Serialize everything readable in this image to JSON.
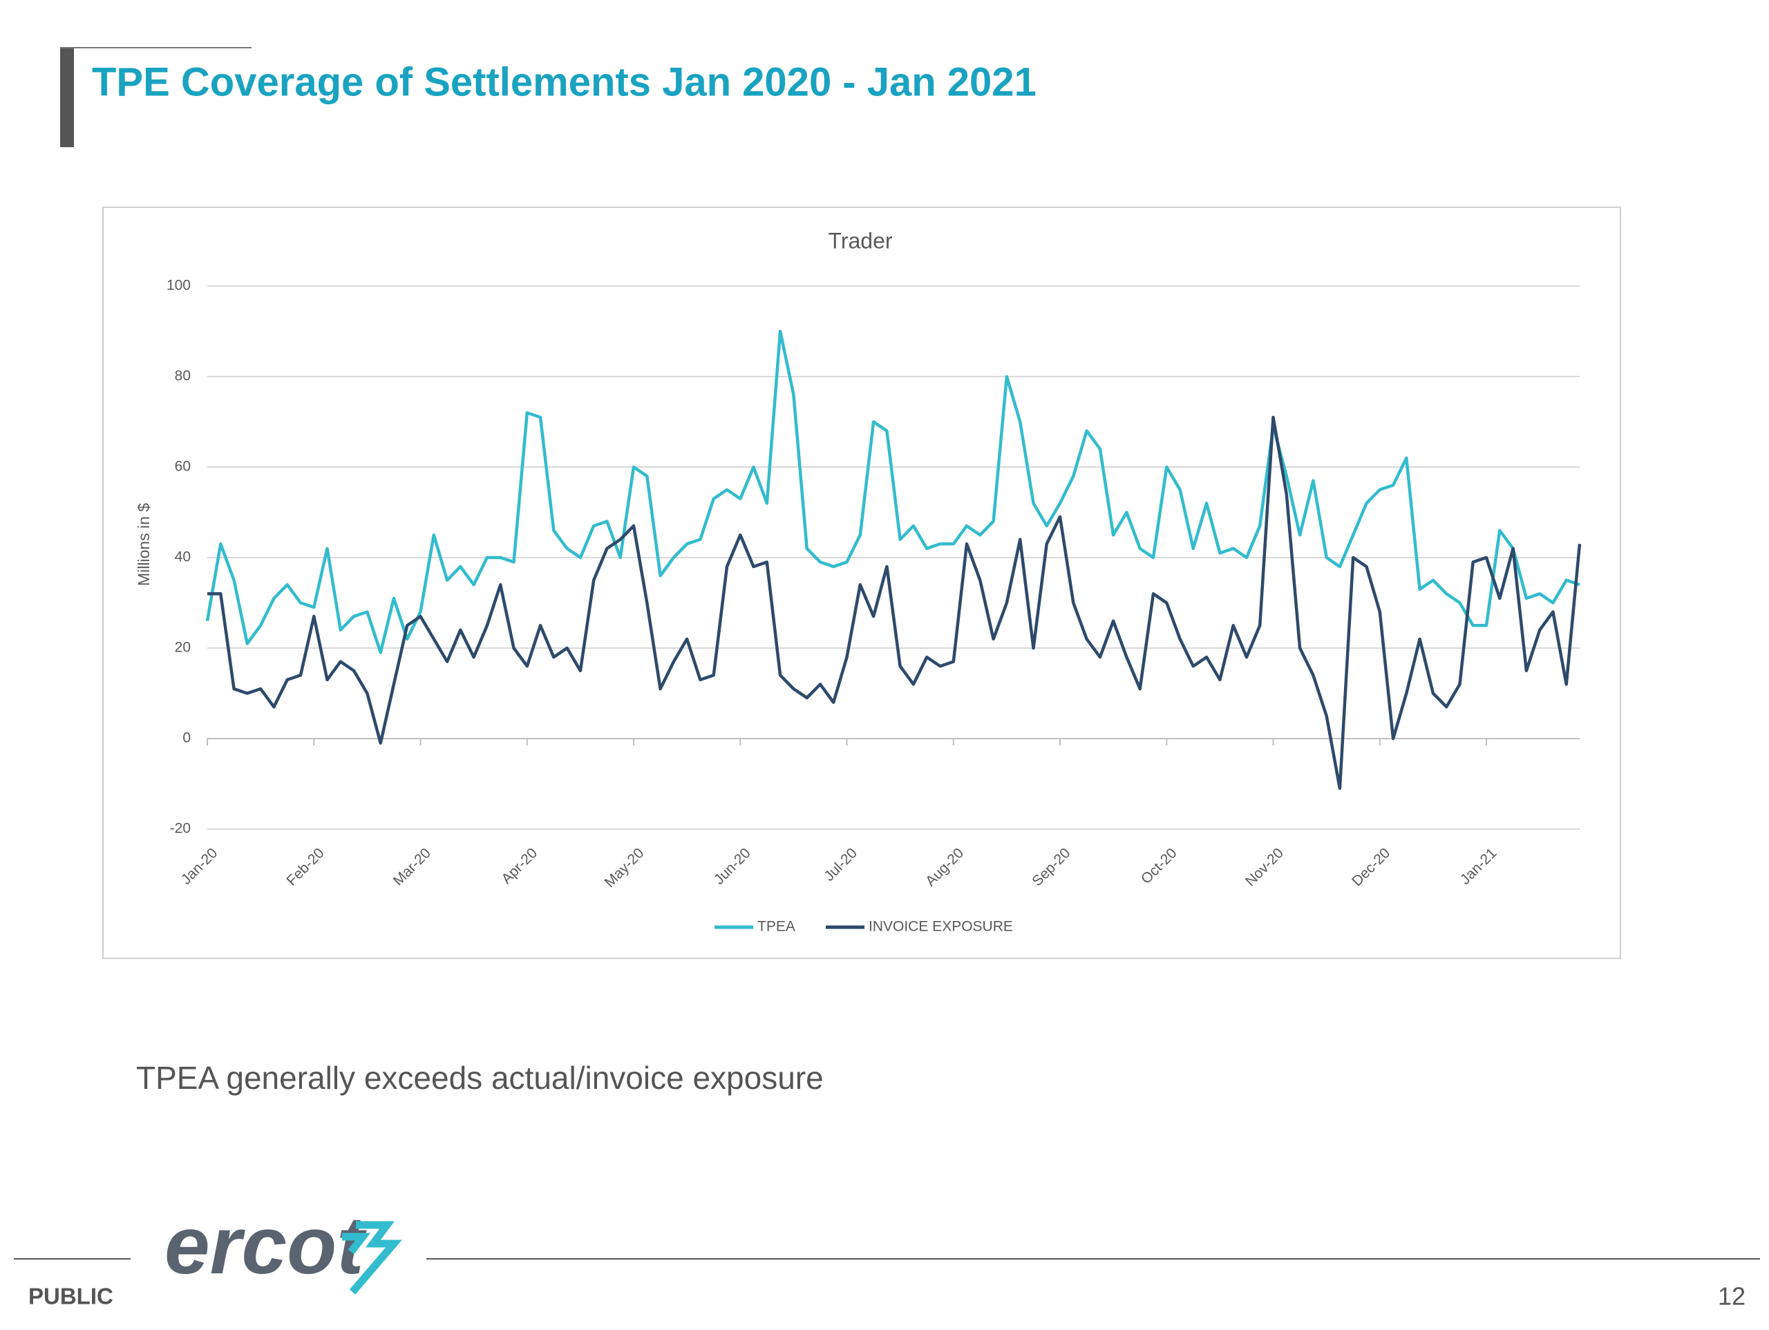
{
  "title": "TPE Coverage of Settlements Jan 2020 - Jan 2021",
  "note": "TPEA generally exceeds actual/invoice exposure",
  "footer": {
    "logo": "ercot",
    "classification": "PUBLIC",
    "page": "12"
  },
  "chart_data": {
    "type": "line",
    "title": "Trader",
    "y_label": "Millions in $",
    "categories": [
      "Jan-20",
      null,
      null,
      null,
      null,
      null,
      null,
      null,
      "Feb-20",
      null,
      null,
      null,
      null,
      null,
      null,
      null,
      "Mar-20",
      null,
      null,
      null,
      null,
      null,
      null,
      null,
      "Apr-20",
      null,
      null,
      null,
      null,
      null,
      null,
      null,
      "May-20",
      null,
      null,
      null,
      null,
      null,
      null,
      null,
      "Jun-20",
      null,
      null,
      null,
      null,
      null,
      null,
      null,
      "Jul-20",
      null,
      null,
      null,
      null,
      null,
      null,
      null,
      "Aug-20",
      null,
      null,
      null,
      null,
      null,
      null,
      null,
      "Sep-20",
      null,
      null,
      null,
      null,
      null,
      null,
      null,
      "Oct-20",
      null,
      null,
      null,
      null,
      null,
      null,
      null,
      "Nov-20",
      null,
      null,
      null,
      null,
      null,
      null,
      null,
      "Dec-20",
      null,
      null,
      null,
      null,
      null,
      null,
      null,
      "Jan-21",
      null,
      null,
      null,
      null,
      null,
      null,
      null
    ],
    "series": [
      {
        "name": "TPEA",
        "color": "#33bccd",
        "values": [
          26,
          43,
          35,
          21,
          25,
          31,
          34,
          30,
          29,
          42,
          24,
          27,
          28,
          19,
          31,
          22,
          28,
          45,
          35,
          38,
          34,
          40,
          40,
          39,
          72,
          71,
          46,
          42,
          40,
          47,
          48,
          40,
          60,
          58,
          36,
          40,
          43,
          44,
          53,
          55,
          53,
          60,
          52,
          90,
          76,
          42,
          39,
          38,
          39,
          45,
          70,
          68,
          44,
          47,
          42,
          43,
          43,
          47,
          45,
          48,
          80,
          70,
          52,
          47,
          52,
          58,
          68,
          64,
          45,
          50,
          42,
          40,
          60,
          55,
          42,
          52,
          41,
          42,
          40,
          47,
          69,
          58,
          45,
          57,
          40,
          38,
          45,
          52,
          55,
          56,
          62,
          33,
          35,
          32,
          30,
          25,
          25,
          46,
          42,
          31,
          32,
          30,
          35,
          34
        ]
      },
      {
        "name": "INVOICE EXPOSURE",
        "color": "#2e4a6b",
        "values": [
          32,
          32,
          11,
          10,
          11,
          7,
          13,
          14,
          27,
          13,
          17,
          15,
          10,
          -1,
          12,
          25,
          27,
          22,
          17,
          24,
          18,
          25,
          34,
          20,
          16,
          25,
          18,
          20,
          15,
          35,
          42,
          44,
          47,
          30,
          11,
          17,
          22,
          13,
          14,
          38,
          45,
          38,
          39,
          14,
          11,
          9,
          12,
          8,
          18,
          34,
          27,
          38,
          16,
          12,
          18,
          16,
          17,
          43,
          35,
          22,
          30,
          44,
          20,
          43,
          49,
          30,
          22,
          18,
          26,
          18,
          11,
          32,
          30,
          22,
          16,
          18,
          13,
          25,
          18,
          25,
          71,
          54,
          20,
          14,
          5,
          -11,
          40,
          38,
          28,
          0,
          10,
          22,
          10,
          7,
          12,
          39,
          40,
          31,
          42,
          15,
          24,
          28,
          12,
          43
        ]
      }
    ],
    "ylim": [
      -20,
      100
    ],
    "yticks": [
      -20,
      0,
      20,
      40,
      60,
      80,
      100
    ],
    "grid": true,
    "legend": "bottom"
  }
}
